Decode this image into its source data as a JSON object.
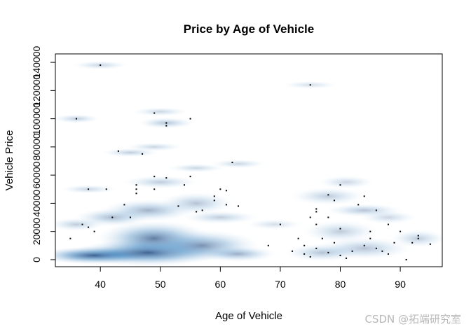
{
  "chart_data": {
    "type": "heatmap",
    "title": "Price by Age of Vehicle",
    "xlabel": "Age of Vehicle",
    "ylabel": "Vehicle Price",
    "xlim": [
      32.5,
      97
    ],
    "ylim": [
      -5000,
      146000
    ],
    "xticks": [
      40,
      50,
      60,
      70,
      80,
      90
    ],
    "yticks": [
      0,
      20000,
      40000,
      60000,
      80000,
      100000,
      120000,
      140000
    ],
    "density_color": "#08306b",
    "grid": false,
    "legend": "none",
    "clusters": [
      {
        "x": 39,
        "y": 3000,
        "sx": 6,
        "sy": 4000,
        "w": 1.0
      },
      {
        "x": 48,
        "y": 5000,
        "sx": 8,
        "sy": 6000,
        "w": 0.95
      },
      {
        "x": 49,
        "y": 15000,
        "sx": 6,
        "sy": 8000,
        "w": 0.75
      },
      {
        "x": 57,
        "y": 10000,
        "sx": 6,
        "sy": 7000,
        "w": 0.6
      },
      {
        "x": 63,
        "y": 4000,
        "sx": 4,
        "sy": 3500,
        "w": 0.45
      },
      {
        "x": 42,
        "y": 30000,
        "sx": 4,
        "sy": 4000,
        "w": 0.4
      },
      {
        "x": 48,
        "y": 35000,
        "sx": 5,
        "sy": 5000,
        "w": 0.45
      },
      {
        "x": 56,
        "y": 40000,
        "sx": 4,
        "sy": 5000,
        "w": 0.35
      },
      {
        "x": 60,
        "y": 30000,
        "sx": 4,
        "sy": 3000,
        "w": 0.3
      },
      {
        "x": 50,
        "y": 55000,
        "sx": 4,
        "sy": 3000,
        "w": 0.3
      },
      {
        "x": 56,
        "y": 65000,
        "sx": 3,
        "sy": 2000,
        "w": 0.25
      },
      {
        "x": 63,
        "y": 68000,
        "sx": 3,
        "sy": 2000,
        "w": 0.25
      },
      {
        "x": 45,
        "y": 76000,
        "sx": 3,
        "sy": 2000,
        "w": 0.3
      },
      {
        "x": 49,
        "y": 80000,
        "sx": 3,
        "sy": 2000,
        "w": 0.25
      },
      {
        "x": 51,
        "y": 97000,
        "sx": 3,
        "sy": 2500,
        "w": 0.35
      },
      {
        "x": 50,
        "y": 105000,
        "sx": 3,
        "sy": 2000,
        "w": 0.25
      },
      {
        "x": 36,
        "y": 100000,
        "sx": 2.5,
        "sy": 2000,
        "w": 0.3
      },
      {
        "x": 40,
        "y": 138000,
        "sx": 3,
        "sy": 2000,
        "w": 0.25
      },
      {
        "x": 75,
        "y": 124000,
        "sx": 3,
        "sy": 1800,
        "w": 0.2
      },
      {
        "x": 38,
        "y": 50000,
        "sx": 3,
        "sy": 2000,
        "w": 0.25
      },
      {
        "x": 36,
        "y": 25000,
        "sx": 3,
        "sy": 3000,
        "w": 0.3
      },
      {
        "x": 77,
        "y": 5000,
        "sx": 4,
        "sy": 4000,
        "w": 0.35
      },
      {
        "x": 84,
        "y": 8000,
        "sx": 5,
        "sy": 5000,
        "w": 0.35
      },
      {
        "x": 80,
        "y": 20000,
        "sx": 4,
        "sy": 5000,
        "w": 0.3
      },
      {
        "x": 84,
        "y": 35000,
        "sx": 4,
        "sy": 3000,
        "w": 0.35
      },
      {
        "x": 78,
        "y": 45000,
        "sx": 4,
        "sy": 4000,
        "w": 0.3
      },
      {
        "x": 81,
        "y": 55000,
        "sx": 3,
        "sy": 3000,
        "w": 0.25
      },
      {
        "x": 88,
        "y": 30000,
        "sx": 3,
        "sy": 3000,
        "w": 0.25
      },
      {
        "x": 93,
        "y": 15000,
        "sx": 3,
        "sy": 4000,
        "w": 0.3
      },
      {
        "x": 69,
        "y": 25000,
        "sx": 3,
        "sy": 2500,
        "w": 0.2
      }
    ],
    "points": [
      [
        40,
        138000
      ],
      [
        75,
        124000
      ],
      [
        36,
        100000
      ],
      [
        51,
        97000
      ],
      [
        51,
        95000
      ],
      [
        55,
        100000
      ],
      [
        49,
        104000
      ],
      [
        43,
        77000
      ],
      [
        47,
        75000
      ],
      [
        62,
        69000
      ],
      [
        49,
        59000
      ],
      [
        51,
        58000
      ],
      [
        55,
        59000
      ],
      [
        46,
        53000
      ],
      [
        46,
        50000
      ],
      [
        46,
        47000
      ],
      [
        38,
        50000
      ],
      [
        41,
        50000
      ],
      [
        49,
        50000
      ],
      [
        54,
        53000
      ],
      [
        60,
        50000
      ],
      [
        61,
        49000
      ],
      [
        59,
        45000
      ],
      [
        59,
        42000
      ],
      [
        61,
        39000
      ],
      [
        63,
        38000
      ],
      [
        57,
        35000
      ],
      [
        53,
        38000
      ],
      [
        44,
        39000
      ],
      [
        42,
        30000
      ],
      [
        45,
        30000
      ],
      [
        37,
        25000
      ],
      [
        38,
        23000
      ],
      [
        35,
        15000
      ],
      [
        39,
        20000
      ],
      [
        56,
        34000
      ],
      [
        76,
        36000
      ],
      [
        76,
        34000
      ],
      [
        79,
        42000
      ],
      [
        78,
        46000
      ],
      [
        80,
        53000
      ],
      [
        83,
        39000
      ],
      [
        86,
        35000
      ],
      [
        84,
        45000
      ],
      [
        75,
        30000
      ],
      [
        78,
        30000
      ],
      [
        76,
        25000
      ],
      [
        80,
        22000
      ],
      [
        88,
        25000
      ],
      [
        85,
        20000
      ],
      [
        90,
        20000
      ],
      [
        93,
        17000
      ],
      [
        93,
        15000
      ],
      [
        95,
        11000
      ],
      [
        74,
        10000
      ],
      [
        76,
        8000
      ],
      [
        78,
        5000
      ],
      [
        80,
        3000
      ],
      [
        82,
        6000
      ],
      [
        84,
        10000
      ],
      [
        86,
        8000
      ],
      [
        88,
        4000
      ],
      [
        89,
        12000
      ],
      [
        91,
        0
      ],
      [
        92,
        12000
      ],
      [
        72,
        6000
      ],
      [
        74,
        4000
      ],
      [
        70,
        25000
      ],
      [
        68,
        10000
      ],
      [
        77,
        15000
      ],
      [
        79,
        12000
      ],
      [
        85,
        15000
      ],
      [
        87,
        6000
      ],
      [
        81,
        1000
      ],
      [
        73,
        15000
      ],
      [
        75,
        2000
      ]
    ]
  },
  "watermark": "CSDN @拓端研究室"
}
